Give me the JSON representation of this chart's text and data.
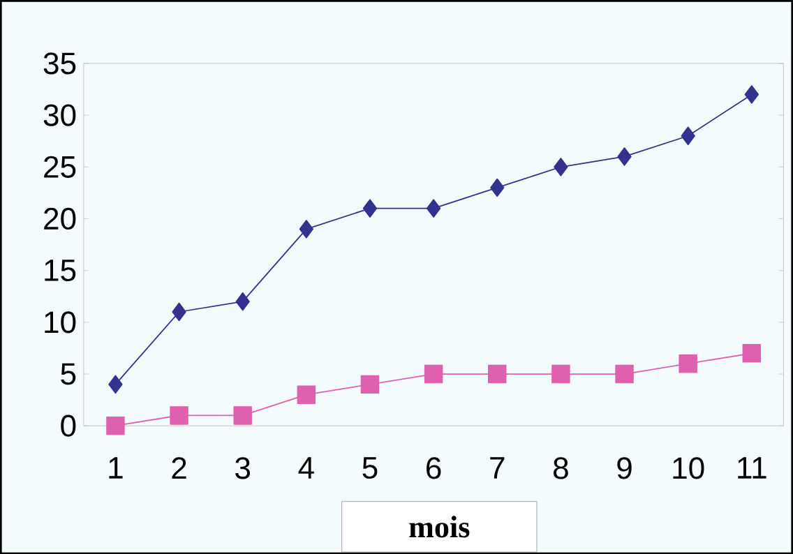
{
  "chart_data": {
    "type": "line",
    "xlabel": "mois",
    "categories": [
      "1",
      "2",
      "3",
      "4",
      "5",
      "6",
      "7",
      "8",
      "9",
      "10",
      "11"
    ],
    "series": [
      {
        "color": "#33338f",
        "marker": "diamond",
        "values": [
          4,
          11,
          12,
          19,
          21,
          21,
          23,
          25,
          26,
          28,
          32
        ]
      },
      {
        "color": "#e060b0",
        "marker": "square",
        "values": [
          0,
          1,
          1,
          3,
          4,
          5,
          5,
          5,
          5,
          6,
          7
        ]
      }
    ],
    "ylim": [
      0,
      35
    ],
    "yticks": [
      0,
      5,
      10,
      15,
      20,
      25,
      30,
      35
    ],
    "grid": false
  }
}
